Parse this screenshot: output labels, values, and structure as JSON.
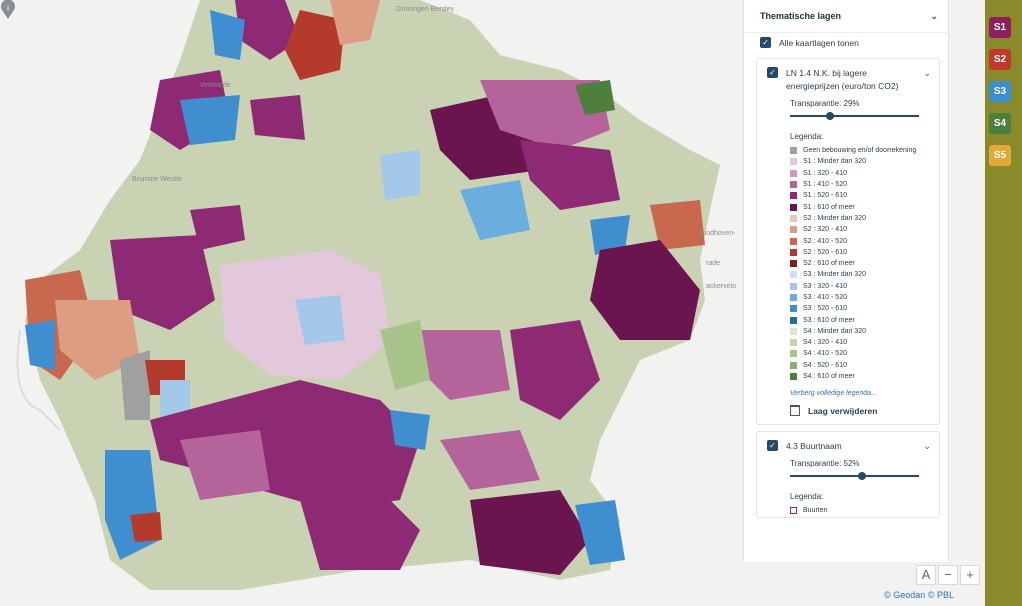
{
  "map": {
    "towns": [
      {
        "name": "Veldstede"
      },
      {
        "name": "Bromme Westte"
      },
      {
        "name": "Groningen Bersley"
      },
      {
        "name": "Eindhoven-"
      },
      {
        "name": "rade"
      },
      {
        "name": "ackervelo"
      }
    ],
    "pin_label": "i",
    "attribution": {
      "geodan": "© Geodan",
      "pbl": "© PBL"
    },
    "controls": {
      "auto": "A",
      "zoom_out": "−",
      "zoom_in": "+"
    }
  },
  "panel": {
    "section_title": "Thematische lagen",
    "show_all_label": "Alle kaartlagen tonen",
    "layers": [
      {
        "title": "LN 1.4 N.K. bij lagere energieprijzen (euro/ton CO2)",
        "transparency_label": "Transparantie: 29%",
        "transparency": 29,
        "legend_title": "Legenda:",
        "legend": [
          {
            "label": "Geen bebouwing en/of doorrekening",
            "color": "#a0a0a0"
          },
          {
            "label": "S1 : Minder dan 320",
            "color": "#e3c8dc"
          },
          {
            "label": "S1 : 320 - 410",
            "color": "#d09ac0"
          },
          {
            "label": "S1 : 410 - 520",
            "color": "#b5649b"
          },
          {
            "label": "S1 : 520 - 610",
            "color": "#8e2a73"
          },
          {
            "label": "S1 : 610 of meer",
            "color": "#6a1550"
          },
          {
            "label": "S2 : Minder dan 320",
            "color": "#e9c7b8"
          },
          {
            "label": "S2 : 320 - 410",
            "color": "#dd9d83"
          },
          {
            "label": "S2 : 410 - 520",
            "color": "#c8684f"
          },
          {
            "label": "S2 : 520 - 610",
            "color": "#b43a2b"
          },
          {
            "label": "S2 : 610 of meer",
            "color": "#7e2313"
          },
          {
            "label": "S3 : Minder dan 320",
            "color": "#cfe1f2"
          },
          {
            "label": "S3 : 320 - 410",
            "color": "#a3c8ea"
          },
          {
            "label": "S3 : 410 - 520",
            "color": "#6aaee0"
          },
          {
            "label": "S3 : 520 - 610",
            "color": "#3f8fd0"
          },
          {
            "label": "S3 : 610 of meer",
            "color": "#2a6a9a"
          },
          {
            "label": "S4 : Minder dan 320",
            "color": "#dde6cf"
          },
          {
            "label": "S4 : 320 - 410",
            "color": "#c2d5ab"
          },
          {
            "label": "S4 : 410 - 520",
            "color": "#a9c48a"
          },
          {
            "label": "S4 : 520 - 610",
            "color": "#8ab06a"
          },
          {
            "label": "S4 : 610 of meer",
            "color": "#4e7f3c"
          }
        ],
        "hide_legend_label": "Verberg volledige legenda...",
        "remove_label": "Laag verwijderen"
      },
      {
        "title": "4.3 Buurtnaam",
        "transparency_label": "Transparantie: 52%",
        "transparency": 52,
        "legend_title": "Legenda:",
        "legend": [
          {
            "label": "Buurten",
            "color": "#9b2a6a"
          }
        ]
      }
    ]
  },
  "scenarios": [
    {
      "label": "S1",
      "color": "#8e1f5e"
    },
    {
      "label": "S2",
      "color": "#c0392b"
    },
    {
      "label": "S3",
      "color": "#3a8fd0"
    },
    {
      "label": "S4",
      "color": "#4f7e3c"
    },
    {
      "label": "S5",
      "color": "#e0a93a"
    }
  ]
}
